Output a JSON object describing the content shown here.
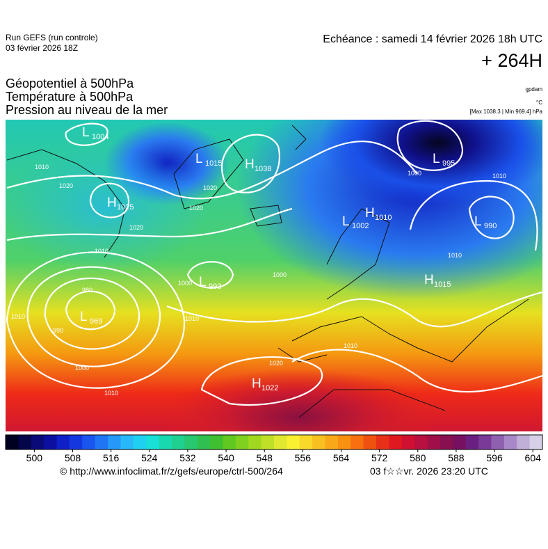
{
  "header": {
    "run": "Run GEFS (run controle)",
    "run_date": "03 février 2026 18Z",
    "valid": "Echéance : samedi 14 février 2026 18h UTC",
    "lead": "+ 264H"
  },
  "fields": [
    "Géopotentiel à 500hPa",
    "Température à 500hPa",
    "Pression au niveau de la mer"
  ],
  "units": {
    "geopotential": "gpdam",
    "temperature": "°C",
    "pressure": "[Max 1038.3 | Min 969.4] hPa"
  },
  "centers": [
    {
      "type": "L",
      "value": 1004
    },
    {
      "type": "L",
      "value": 1015
    },
    {
      "type": "H",
      "value": 1038
    },
    {
      "type": "H",
      "value": 1025
    },
    {
      "type": "L",
      "value": 1002
    },
    {
      "type": "H",
      "value": 1010
    },
    {
      "type": "L",
      "value": 995
    },
    {
      "type": "L",
      "value": 990
    },
    {
      "type": "L",
      "value": 993
    },
    {
      "type": "H",
      "value": 1015
    },
    {
      "type": "L",
      "value": 969
    },
    {
      "type": "H",
      "value": 1022
    }
  ],
  "isobar_labels": [
    1010,
    1020,
    1020,
    1010,
    1020,
    1020,
    1000,
    1010,
    1010,
    1000,
    1000,
    1010,
    1010,
    980,
    990,
    1000,
    1010,
    1020,
    1010
  ],
  "colorbar": {
    "lim": [
      494,
      606
    ],
    "ticks": [
      500,
      508,
      516,
      524,
      532,
      540,
      548,
      556,
      564,
      572,
      580,
      588,
      596,
      604
    ]
  },
  "footer": {
    "source": "© http://www.infoclimat.fr/z/gefs/europe/ctrl-500/264",
    "generated": "03 f☆☆vr. 2026 23:20 UTC"
  }
}
